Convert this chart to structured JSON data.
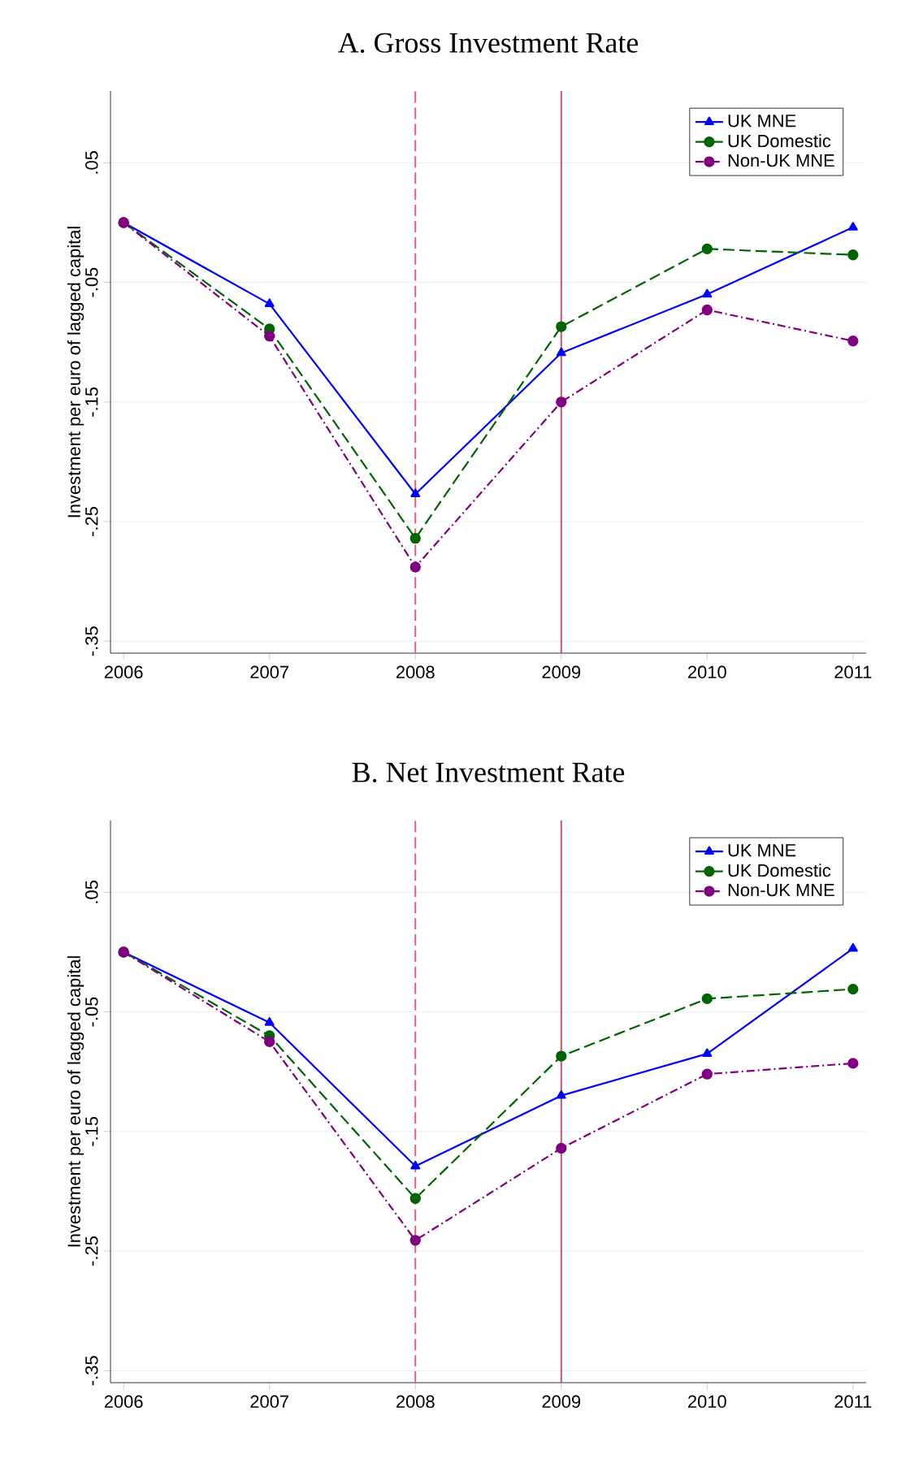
{
  "chart_data": [
    {
      "type": "line",
      "title": "A. Gross Investment Rate",
      "ylabel": "Investment per euro of lagged capital",
      "x": [
        2006,
        2007,
        2008,
        2009,
        2010,
        2011
      ],
      "series": [
        {
          "name": "UK MNE",
          "color": "#0000ff",
          "marker": "triangle",
          "line_style": "solid",
          "values": [
            0.0,
            -0.068,
            -0.227,
            -0.109,
            -0.06,
            -0.004
          ]
        },
        {
          "name": "UK Domestic",
          "color": "#006400",
          "marker": "circle",
          "line_style": "dashed",
          "values": [
            0.0,
            -0.089,
            -0.264,
            -0.087,
            -0.022,
            -0.027
          ]
        },
        {
          "name": "Non-UK MNE",
          "color": "#800080",
          "marker": "circle",
          "line_style": "dashdot",
          "values": [
            0.0,
            -0.095,
            -0.288,
            -0.15,
            -0.073,
            -0.099
          ]
        }
      ],
      "xlim": [
        2005.91,
        2011.09
      ],
      "ylim": [
        -0.36,
        0.11
      ],
      "xticks": [
        2006,
        2007,
        2008,
        2009,
        2010,
        2011
      ],
      "yticks": [
        {
          "value": 0.05,
          "label": ".05"
        },
        {
          "value": -0.05,
          "label": "-.05"
        },
        {
          "value": -0.15,
          "label": "-.15"
        },
        {
          "value": -0.25,
          "label": "-.25"
        },
        {
          "value": -0.35,
          "label": "-.35"
        }
      ],
      "ref_lines": [
        {
          "axis": "x",
          "value": 2008,
          "color": "#e0607e",
          "line_style": "dashed"
        },
        {
          "axis": "x",
          "value": 2009,
          "color": "#d0506e",
          "line_style": "solid"
        }
      ],
      "grid": "y",
      "legend": "top right"
    },
    {
      "type": "line",
      "title": "B. Net Investment Rate",
      "ylabel": "Investment per euro of lagged capital",
      "x": [
        2006,
        2007,
        2008,
        2009,
        2010,
        2011
      ],
      "series": [
        {
          "name": "UK MNE",
          "color": "#0000ff",
          "marker": "triangle",
          "line_style": "solid",
          "values": [
            0.0,
            -0.059,
            -0.179,
            -0.12,
            -0.085,
            0.003
          ]
        },
        {
          "name": "UK Domestic",
          "color": "#006400",
          "marker": "circle",
          "line_style": "dashed",
          "values": [
            0.0,
            -0.07,
            -0.206,
            -0.087,
            -0.039,
            -0.031
          ]
        },
        {
          "name": "Non-UK MNE",
          "color": "#800080",
          "marker": "circle",
          "line_style": "dashdot",
          "values": [
            0.0,
            -0.075,
            -0.241,
            -0.164,
            -0.102,
            -0.093
          ]
        }
      ],
      "xlim": [
        2005.91,
        2011.09
      ],
      "ylim": [
        -0.36,
        0.11
      ],
      "xticks": [
        2006,
        2007,
        2008,
        2009,
        2010,
        2011
      ],
      "yticks": [
        {
          "value": 0.05,
          "label": ".05"
        },
        {
          "value": -0.05,
          "label": "-.05"
        },
        {
          "value": -0.15,
          "label": "-.15"
        },
        {
          "value": -0.25,
          "label": "-.25"
        },
        {
          "value": -0.35,
          "label": "-.35"
        }
      ],
      "ref_lines": [
        {
          "axis": "x",
          "value": 2008,
          "color": "#e0607e",
          "line_style": "dashed"
        },
        {
          "axis": "x",
          "value": 2009,
          "color": "#d0506e",
          "line_style": "solid"
        }
      ],
      "grid": "y",
      "legend": "top right"
    }
  ]
}
